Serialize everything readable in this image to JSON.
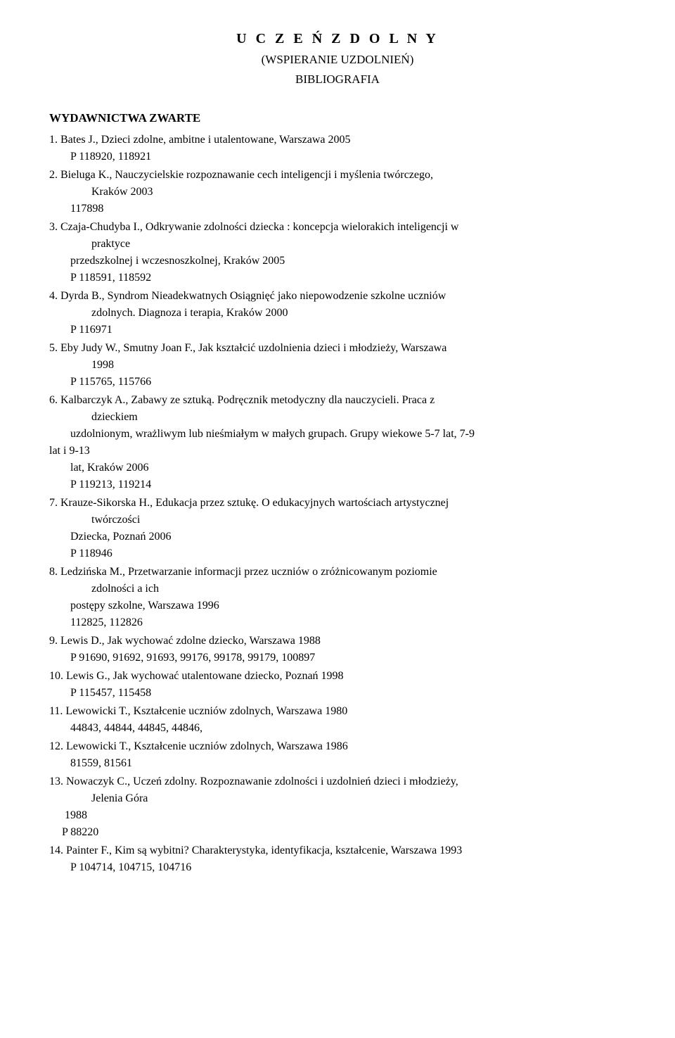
{
  "title": {
    "main": "U C Z E Ń  Z D O L N Y",
    "sub": "(WSPIERANIE UZDOLNIEŃ)",
    "biblio": "BIBLIOGRAFIA"
  },
  "section_header": "WYDAWNICTWA  ZWARTE",
  "entries": [
    {
      "num": "1.",
      "line1": "Bates J., Dzieci zdolne, ambitne i utalentowane, Warszawa 2005",
      "line2": "P 118920, 118921"
    },
    {
      "num": "2.",
      "line1": "Bieluga K., Nauczycielskie rozpoznawanie cech inteligencji i myślenia twórczego,",
      "indent1": "Kraków 2003",
      "line2": "117898"
    },
    {
      "num": "3.",
      "line1": "Czaja-Chudyba I., Odkrywanie zdolności dziecka : koncepcja wielorakich inteligencji w",
      "indent1": "praktyce",
      "line2": "przedszkolnej i wczesnoszkolnej, Kraków 2005",
      "line3": "P 118591, 118592"
    },
    {
      "num": "4.",
      "line1": "Dyrda B., Syndrom Nieadekwatnych Osiągnięć jako niepowodzenie szkolne uczniów",
      "indent1": "zdolnych. Diagnoza i terapia, Kraków 2000",
      "line2": "P 116971"
    },
    {
      "num": "5.",
      "line1": "Eby Judy W., Smutny Joan F., Jak kształcić uzdolnienia dzieci i młodzieży, Warszawa",
      "indent1": "1998",
      "line2": "P 115765, 115766"
    },
    {
      "num": "6.",
      "line1": "Kalbarczyk A., Zabawy ze sztuką. Podręcznik metodyczny dla nauczycieli. Praca z",
      "indent1": "dzieckiem",
      "extra0": "uzdolnionym, wrażliwym lub nieśmiałym w małych grupach. Grupy wiekowe 5-7 lat, 7-9",
      "extra1": "lat i 9-13",
      "extra2": "lat, Kraków 2006",
      "line2": "P 119213, 119214"
    },
    {
      "num": "7.",
      "line1": "Krauze-Sikorska H., Edukacja przez sztukę. O edukacyjnych wartościach artystycznej",
      "indent1": "twórczości",
      "line2": "Dziecka, Poznań 2006",
      "line3": "P 118946"
    },
    {
      "num": "8.",
      "line1": "Ledzińska M., Przetwarzanie informacji przez uczniów o zróżnicowanym poziomie",
      "indent1": "zdolności a ich",
      "line2": "postępy szkolne, Warszawa 1996",
      "line3": "112825, 112826"
    },
    {
      "num": "9.",
      "line1": "Lewis D., Jak wychować zdolne dziecko, Warszawa 1988",
      "line2": "P 91690, 91692, 91693, 99176, 99178, 99179, 100897"
    },
    {
      "num": "10.",
      "line1": "Lewis G., Jak wychować utalentowane dziecko, Poznań 1998",
      "line2": "P 115457, 115458"
    },
    {
      "num": "11.",
      "line1": "Lewowicki T., Kształcenie uczniów zdolnych, Warszawa 1980",
      "line2": "44843, 44844, 44845, 44846,"
    },
    {
      "num": "12.",
      "line1": "Lewowicki T., Kształcenie uczniów zdolnych, Warszawa 1986",
      "line2": "81559, 81561"
    },
    {
      "num": "13.",
      "line1": "Nowaczyk C., Uczeń zdolny. Rozpoznawanie zdolności i uzdolnień dzieci i młodzieży,",
      "indent1": "Jelenia Góra",
      "year": "1988",
      "code": "P 88220"
    },
    {
      "num": "14.",
      "line1": "Painter F., Kim są wybitni? Charakterystyka, identyfikacja, kształcenie, Warszawa 1993",
      "line2": "P 104714, 104715, 104716"
    }
  ]
}
